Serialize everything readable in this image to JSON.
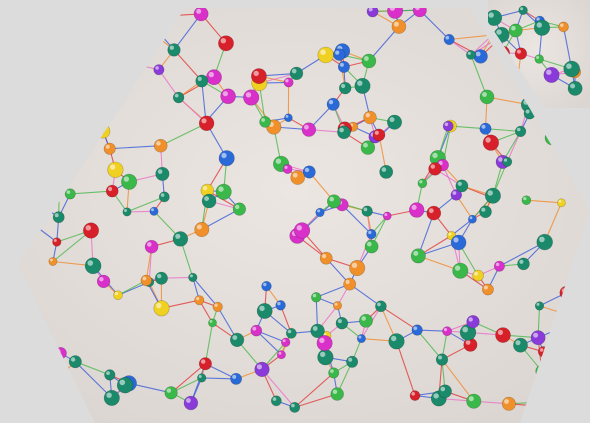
{
  "image": {
    "subject": "molecular-network-hexagon",
    "accent_colors": {
      "page_background": "#dcdcdc",
      "canvas_background": "#e6e0dc",
      "edge_blue": "#3a5cd8",
      "edge_pink": "#e870c8",
      "edge_red": "#e03a3a",
      "edge_orange": "#f08a2a",
      "edge_green": "#4ab84a",
      "node_teal": "#1a8a6a",
      "node_green": "#3ab84a",
      "node_red": "#d8202a",
      "node_yellow": "#f0d020",
      "node_orange": "#f0902a",
      "node_purple": "#8a3ad8",
      "node_blue": "#2a6ad8",
      "node_magenta": "#d830c8"
    }
  }
}
